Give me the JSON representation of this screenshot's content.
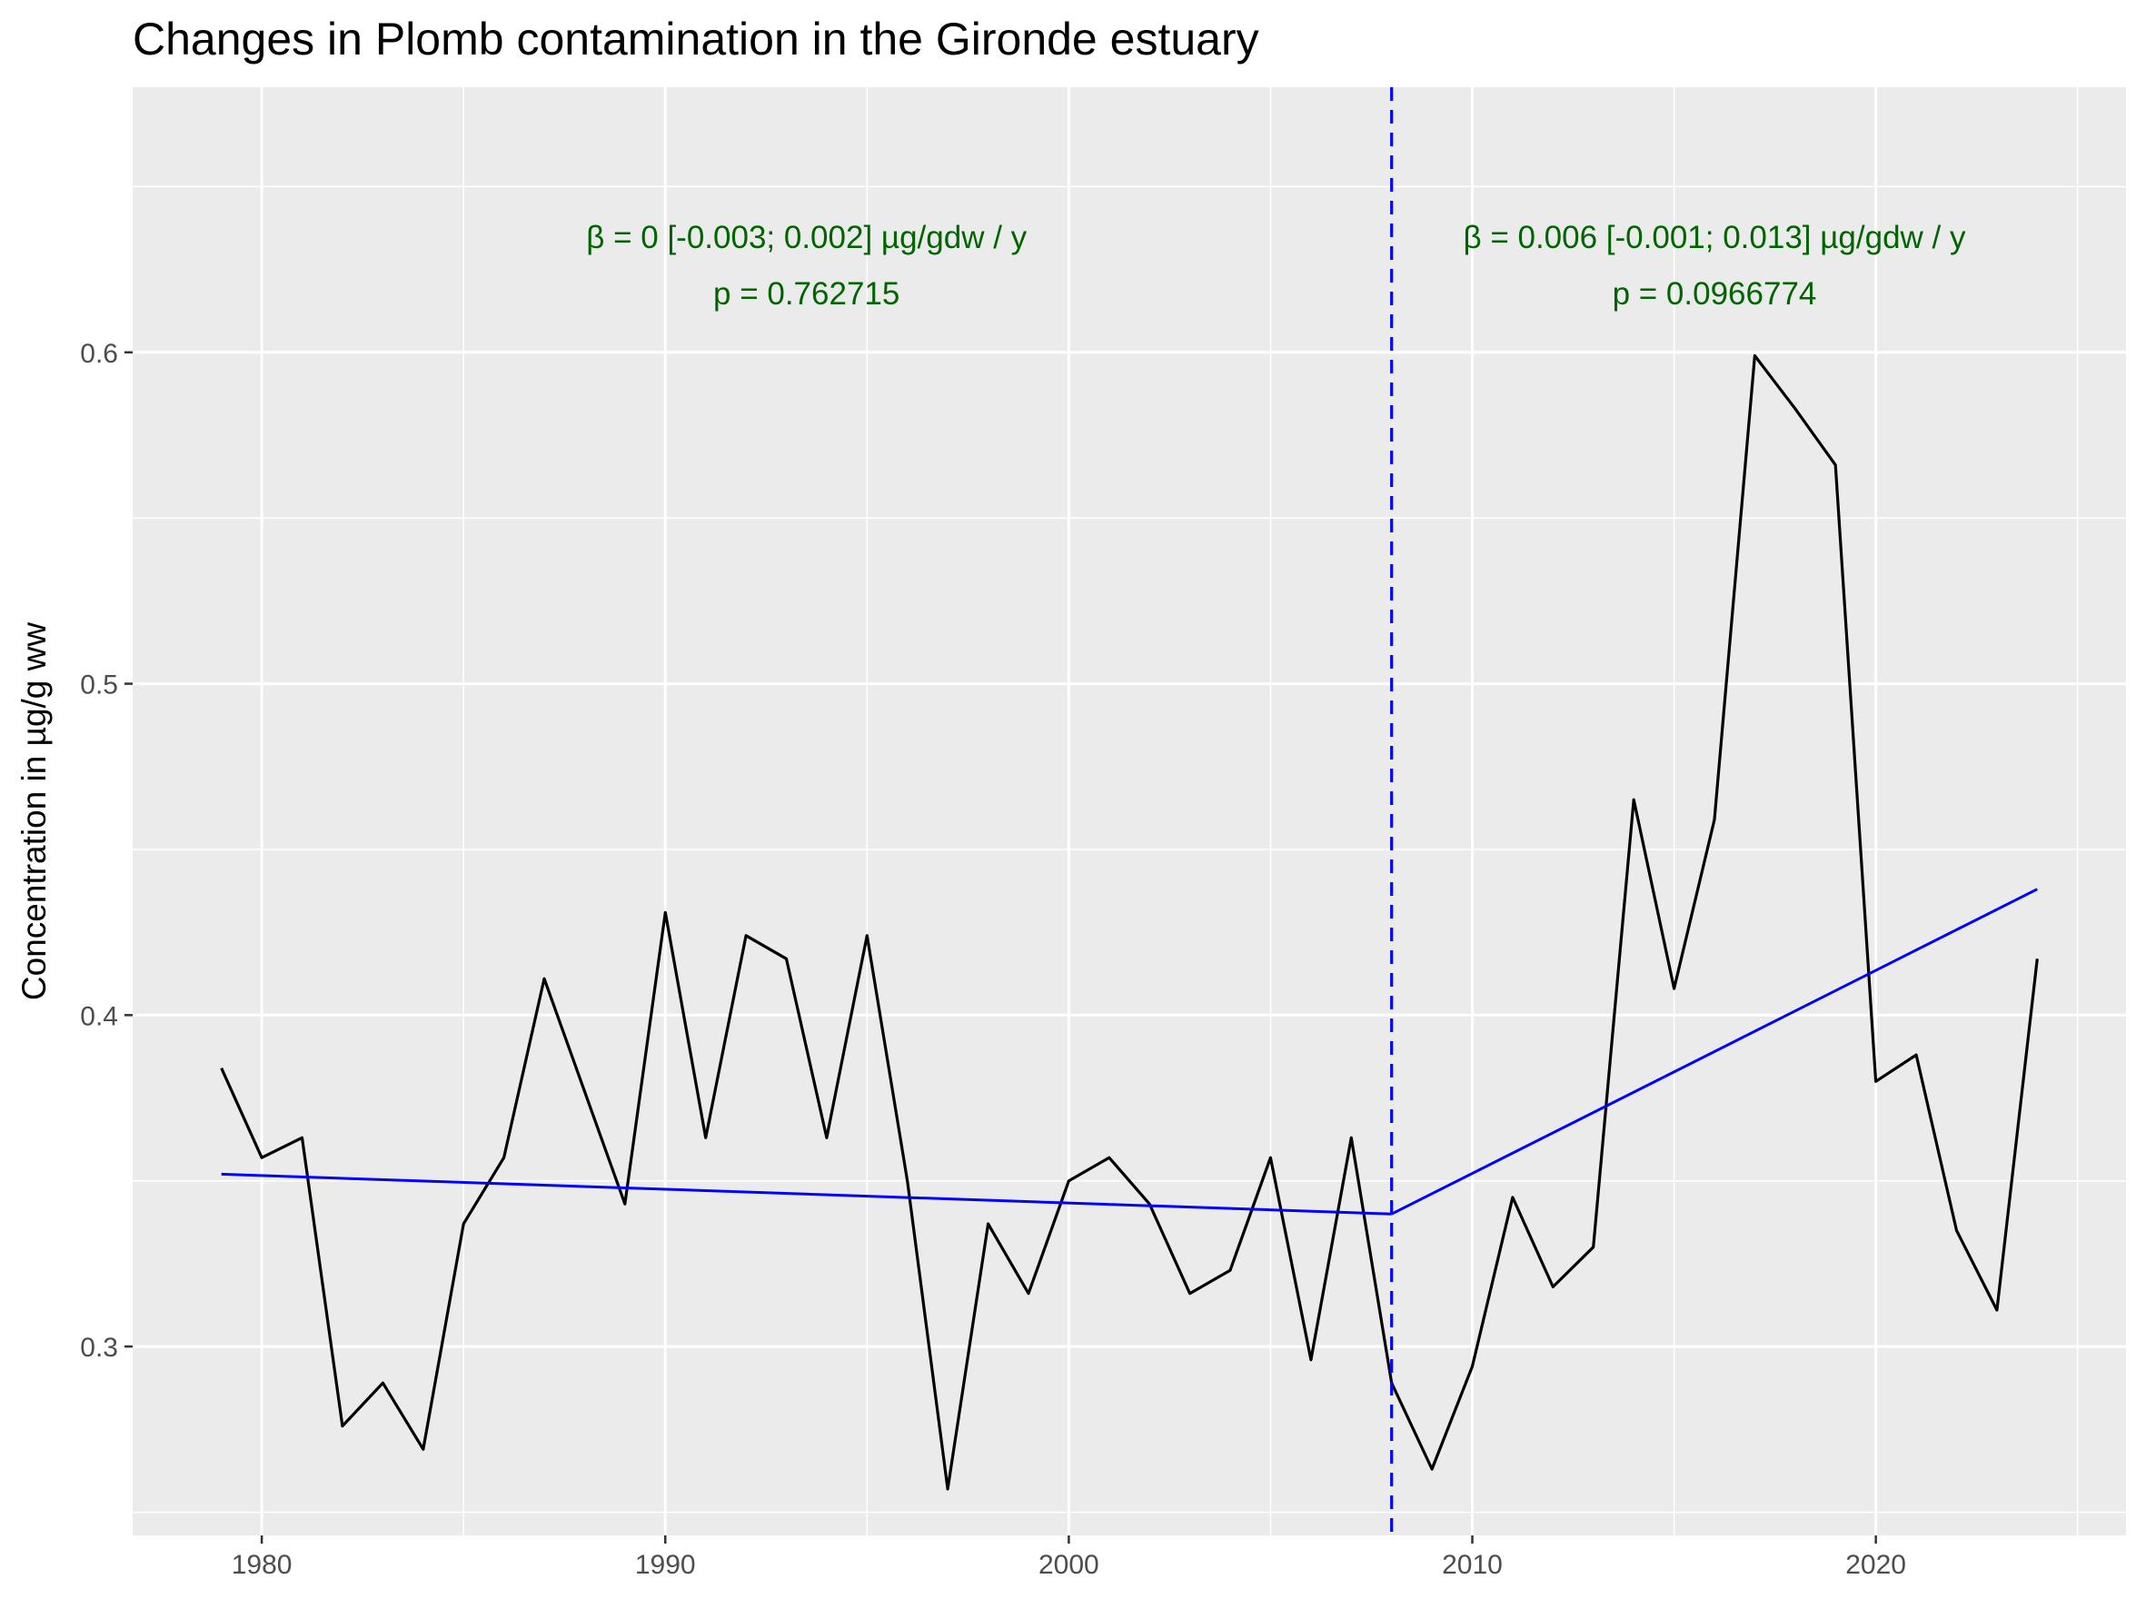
{
  "chart_data": {
    "type": "line",
    "title": "Changes in Plomb contamination in the Gironde estuary",
    "xlabel": "",
    "ylabel": "Concentration in µg/g ww",
    "xlim": [
      1976.8,
      2026.2
    ],
    "ylim": [
      0.243,
      0.68
    ],
    "x_ticks": [
      1980,
      1990,
      2000,
      2010,
      2020
    ],
    "x_minor": [
      1985,
      1995,
      2005,
      2015,
      2025
    ],
    "y_ticks": [
      0.3,
      0.4,
      0.5,
      0.6
    ],
    "y_minor": [
      0.25,
      0.35,
      0.45,
      0.55,
      0.65
    ],
    "grid": true,
    "series": [
      {
        "x": [
          1979,
          1980,
          1981,
          1982,
          1983,
          1984,
          1985,
          1986,
          1987,
          1988,
          1989,
          1990,
          1991,
          1992,
          1993,
          1994,
          1995,
          1996,
          1997,
          1998,
          1999,
          2000,
          2001,
          2002,
          2003,
          2004,
          2005,
          2006,
          2007,
          2008,
          2009,
          2010,
          2011,
          2012,
          2013,
          2014,
          2015,
          2016,
          2017,
          2018,
          2019,
          2020,
          2021,
          2022,
          2023,
          2024
        ],
        "values": [
          0.384,
          0.357,
          0.363,
          0.276,
          0.289,
          0.269,
          0.337,
          0.357,
          0.411,
          0.377,
          0.343,
          0.431,
          0.363,
          0.424,
          0.417,
          0.363,
          0.424,
          0.35,
          0.257,
          0.337,
          0.316,
          0.35,
          0.357,
          0.343,
          0.316,
          0.323,
          0.357,
          0.296,
          0.363,
          0.289,
          0.263,
          0.294,
          0.345,
          0.318,
          0.33,
          0.465,
          0.408,
          0.459,
          0.599,
          0.583,
          0.566,
          0.38,
          0.388,
          0.335,
          0.311,
          0.417
        ],
        "color": "#000000"
      }
    ],
    "trend_lines": [
      {
        "x": [
          1979,
          2008
        ],
        "values": [
          0.352,
          0.34
        ],
        "color": "#0000ff"
      },
      {
        "x": [
          2008,
          2024
        ],
        "values": [
          0.34,
          0.438
        ],
        "color": "#0000ff"
      }
    ],
    "breakpoint": {
      "x": 2008,
      "color": "#0000ff"
    },
    "annotations": [
      {
        "x": 1993.5,
        "y_line1": 0.6315,
        "y_line2": 0.6145,
        "line1": "β = 0 [-0.003; 0.002] µg/gdw / y",
        "line2": "p = 0.762715",
        "color": "#006400"
      },
      {
        "x": 2016.0,
        "y_line1": 0.6315,
        "y_line2": 0.6145,
        "line1": "β = 0.006 [-0.001; 0.013] µg/gdw / y",
        "line2": "p = 0.0966774",
        "color": "#006400"
      }
    ],
    "panel_background": "#ebebeb",
    "grid_color": "#ffffff"
  }
}
